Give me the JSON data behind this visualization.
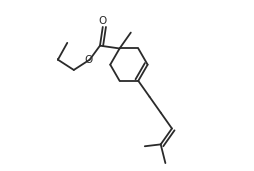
{
  "background_color": "#ffffff",
  "line_color": "#2a2a2a",
  "lw": 1.3,
  "figsize": [
    2.55,
    1.71
  ],
  "dpi": 100
}
